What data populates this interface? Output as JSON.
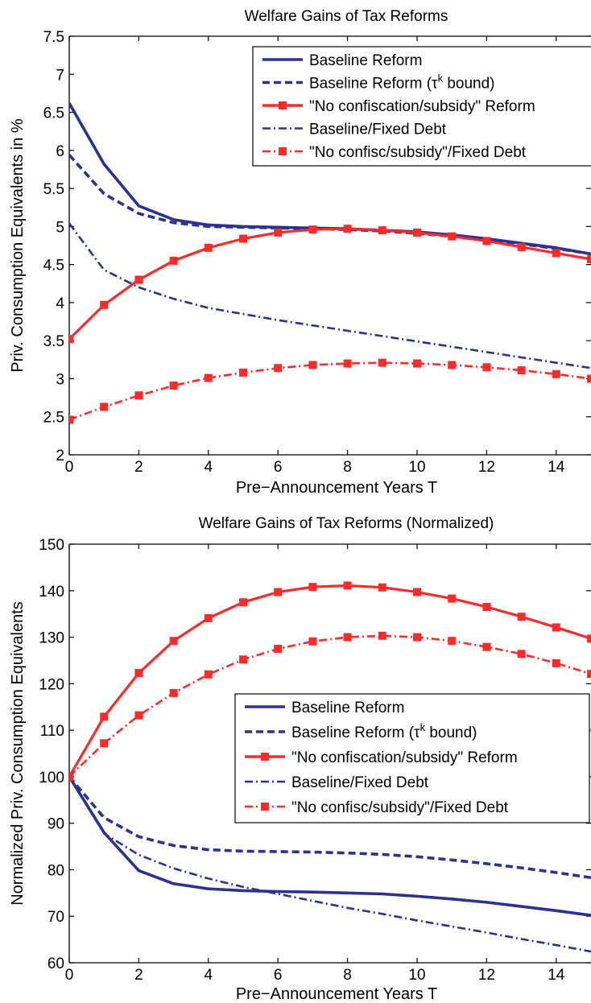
{
  "chart_data": [
    {
      "type": "line",
      "title": "Welfare Gains of Tax Reforms",
      "xlabel": "Pre−Announcement Years T",
      "ylabel": "Priv. Consumption Equivalents in %",
      "xlim": [
        0,
        15
      ],
      "ylim": [
        2,
        7.5
      ],
      "xticks": [
        "0",
        "2",
        "4",
        "6",
        "8",
        "10",
        "12",
        "14"
      ],
      "yticks": [
        "2",
        "2.5",
        "3",
        "3.5",
        "4",
        "4.5",
        "5",
        "5.5",
        "6",
        "6.5",
        "7",
        "7.5"
      ],
      "legend_position": "top-right",
      "x": [
        0,
        1,
        2,
        3,
        4,
        5,
        6,
        7,
        8,
        9,
        10,
        11,
        12,
        13,
        14,
        15
      ],
      "series": [
        {
          "name": "Baseline Reform",
          "color": "#2c3192",
          "style": "solid",
          "marker": "none",
          "values": [
            6.62,
            5.82,
            5.27,
            5.09,
            5.02,
            5.0,
            4.99,
            4.98,
            4.97,
            4.95,
            4.93,
            4.89,
            4.84,
            4.78,
            4.72,
            4.64
          ]
        },
        {
          "name": "Baseline Reform (τk bound)",
          "color": "#2c3192",
          "style": "dashed",
          "marker": "none",
          "values": [
            5.94,
            5.43,
            5.17,
            5.05,
            5.0,
            4.99,
            4.98,
            4.97,
            4.96,
            4.94,
            4.91,
            4.87,
            4.82,
            4.77,
            4.71,
            4.64
          ]
        },
        {
          "name": "\"No confiscation/subsidy\" Reform",
          "color": "#ff2a2a",
          "style": "solid",
          "marker": "square",
          "values": [
            3.52,
            3.97,
            4.3,
            4.55,
            4.72,
            4.84,
            4.92,
            4.96,
            4.97,
            4.95,
            4.92,
            4.87,
            4.81,
            4.73,
            4.65,
            4.57
          ]
        },
        {
          "name": "Baseline/Fixed Debt",
          "color": "#2c3192",
          "style": "dashdot",
          "marker": "none",
          "values": [
            5.04,
            4.43,
            4.2,
            4.05,
            3.93,
            3.85,
            3.77,
            3.7,
            3.63,
            3.56,
            3.49,
            3.42,
            3.35,
            3.28,
            3.21,
            3.14
          ]
        },
        {
          "name": "\"No confisc/subsidy\"/Fixed Debt",
          "color": "#ff2a2a",
          "style": "dashdot",
          "marker": "square",
          "values": [
            2.46,
            2.63,
            2.78,
            2.91,
            3.01,
            3.08,
            3.14,
            3.18,
            3.2,
            3.21,
            3.2,
            3.18,
            3.15,
            3.11,
            3.06,
            3.0
          ]
        }
      ]
    },
    {
      "type": "line",
      "title": "Welfare Gains of Tax Reforms (Normalized)",
      "xlabel": "Pre−Announcement Years T",
      "ylabel": "Normalized Priv. Consumption Equivalents",
      "xlim": [
        0,
        15
      ],
      "ylim": [
        60,
        150
      ],
      "xticks": [
        "0",
        "2",
        "4",
        "6",
        "8",
        "10",
        "12",
        "14"
      ],
      "yticks": [
        "60",
        "70",
        "80",
        "90",
        "100",
        "110",
        "120",
        "130",
        "140",
        "150"
      ],
      "legend_position": "center-right",
      "x": [
        0,
        1,
        2,
        3,
        4,
        5,
        6,
        7,
        8,
        9,
        10,
        11,
        12,
        13,
        14,
        15
      ],
      "series": [
        {
          "name": "Baseline Reform",
          "color": "#2c3192",
          "style": "solid",
          "marker": "none",
          "values": [
            100,
            88,
            79.8,
            77.0,
            75.9,
            75.5,
            75.3,
            75.2,
            75.0,
            74.8,
            74.3,
            73.7,
            73.0,
            72.1,
            71.2,
            70.2
          ]
        },
        {
          "name": "Baseline Reform (τk bound)",
          "color": "#2c3192",
          "style": "dashed",
          "marker": "none",
          "values": [
            100,
            91.2,
            87.1,
            85.2,
            84.3,
            84.0,
            83.9,
            83.8,
            83.6,
            83.3,
            82.8,
            82.1,
            81.3,
            80.4,
            79.4,
            78.3
          ]
        },
        {
          "name": "\"No confiscation/subsidy\" Reform",
          "color": "#ff2a2a",
          "style": "solid",
          "marker": "square",
          "values": [
            100,
            112.9,
            122.3,
            129.2,
            134.1,
            137.5,
            139.7,
            140.8,
            141.1,
            140.7,
            139.7,
            138.3,
            136.5,
            134.4,
            132.1,
            129.7
          ]
        },
        {
          "name": "Baseline/Fixed Debt",
          "color": "#2c3192",
          "style": "dashdot",
          "marker": "none",
          "values": [
            100,
            87.8,
            83.2,
            80.3,
            78.1,
            76.3,
            74.8,
            73.3,
            71.8,
            70.5,
            69.1,
            67.8,
            66.5,
            65.1,
            63.8,
            62.4
          ]
        },
        {
          "name": "\"No confisc/subsidy\"/Fixed Debt",
          "color": "#ff2a2a",
          "style": "dashdot",
          "marker": "square",
          "values": [
            100,
            107.2,
            113.2,
            118.0,
            122.0,
            125.2,
            127.5,
            129.1,
            130.0,
            130.3,
            130.0,
            129.2,
            127.9,
            126.4,
            124.4,
            122.1
          ]
        }
      ]
    }
  ]
}
